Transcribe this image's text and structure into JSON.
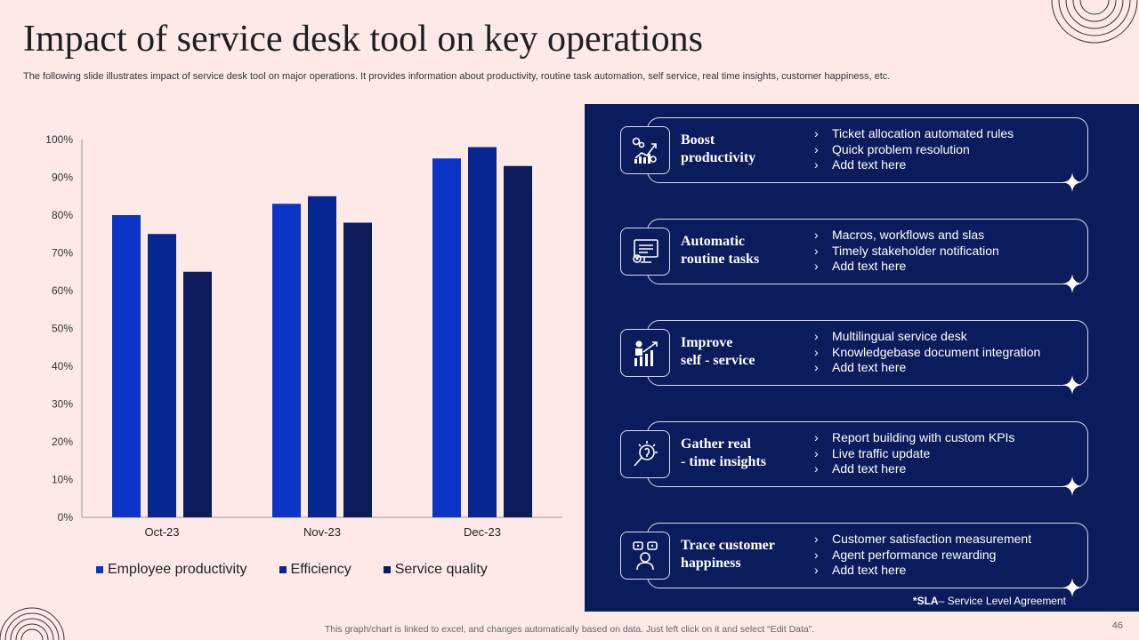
{
  "slide": {
    "title": "Impact of service desk tool on key operations",
    "subtitle": "The following slide illustrates impact of service desk tool on major operations. It provides information about productivity, routine task automation, self service, real time insights, customer happiness, etc.",
    "footer_note": "This graph/chart is linked to excel,  and changes automatically based on data. Just left click on it and select “Edit Data”.",
    "page_number": "46"
  },
  "chart_data": {
    "type": "bar",
    "categories": [
      "Oct-23",
      "Nov-23",
      "Dec-23"
    ],
    "series": [
      {
        "name": "Employee productivity",
        "color": "#0c35c8",
        "values": [
          80,
          83,
          95
        ]
      },
      {
        "name": "Efficiency",
        "color": "#08268f",
        "values": [
          75,
          85,
          98
        ]
      },
      {
        "name": "Service quality",
        "color": "#0b1b5c",
        "values": [
          65,
          78,
          93
        ]
      }
    ],
    "ylim": [
      0,
      100
    ],
    "yticks": [
      "0%",
      "10%",
      "20%",
      "30%",
      "40%",
      "50%",
      "60%",
      "70%",
      "80%",
      "90%",
      "100%"
    ],
    "legend_position": "bottom"
  },
  "panel": {
    "cards": [
      {
        "title": "Boost\nproductivity",
        "icon": "productivity-chart-icon",
        "bullets": [
          "Ticket allocation automated rules",
          "Quick problem resolution",
          "Add text here"
        ]
      },
      {
        "title": "Automatic\nroutine tasks",
        "icon": "monitor-gear-icon",
        "bullets": [
          "Macros, workflows and slas",
          "Timely stakeholder notification",
          "Add text here"
        ]
      },
      {
        "title": "Improve\nself - service",
        "icon": "growth-person-icon",
        "bullets": [
          "Multilingual  service desk",
          "Knowledgebase document integration",
          "Add text here"
        ]
      },
      {
        "title": "Gather real\n - time insights",
        "icon": "lightbulb-magnifier-icon",
        "bullets": [
          "Report building with custom KPIs",
          "Live traffic update",
          "Add text here"
        ]
      },
      {
        "title": "Trace customer\nhappiness",
        "icon": "happy-customer-icon",
        "bullets": [
          "Customer satisfaction measurement",
          "Agent performance rewarding",
          "Add text here"
        ]
      }
    ],
    "sla_abbr": "*SLA",
    "sla_text": "– Service Level Agreement"
  }
}
